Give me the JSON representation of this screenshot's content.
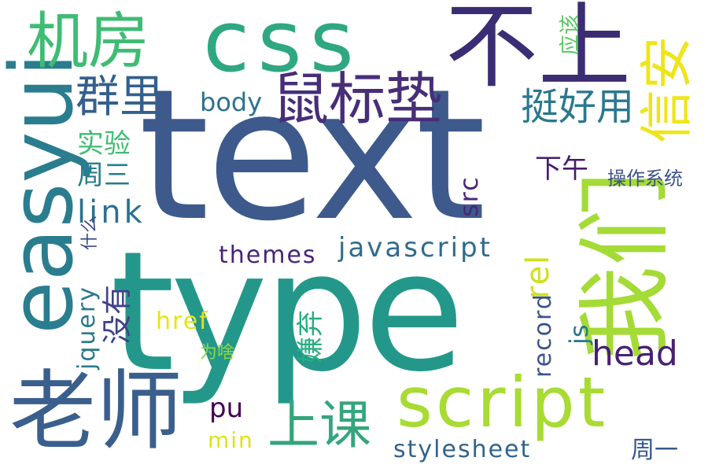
{
  "words": {
    "text": "text",
    "type": "type",
    "css": "css",
    "script": "script",
    "easyui": "easyui",
    "laoshi": "老师",
    "buzhang": "不上",
    "women": "我们",
    "jifang": "机房",
    "shubiaodian": "鼠标垫",
    "xinan": "信安",
    "qunli": "群里",
    "tinghaoyong": "挺好用",
    "body": "body",
    "shiyan": "实验",
    "zhousan": "周三",
    "link": "link",
    "xiawu": "下午",
    "caozuoxitong": "操作系统",
    "src": "src",
    "yinggai": "应该",
    "shenme": "什么",
    "themes": "themes",
    "javascript": "javascript",
    "rel": "rel",
    "jquery": "jquery",
    "meiyou": "没有",
    "href": "href",
    "xianqi": "嫌弃",
    "record": "record",
    "js": "js",
    "head": "head",
    "weisha": "为啥",
    "shangke": "上课",
    "pu": "pu",
    "min": "min",
    "stylesheet": "stylesheet",
    "zhouyi": "周一"
  },
  "colors": {
    "dark_purple": "#440154",
    "indigo": "#482878",
    "slate_blue": "#3e4a89",
    "steel_blue": "#31688e",
    "teal_blue": "#26828e",
    "teal": "#1f9e89",
    "green": "#35b779",
    "light_green": "#6ece58",
    "lime": "#b5de2b",
    "yellow": "#fde725"
  }
}
